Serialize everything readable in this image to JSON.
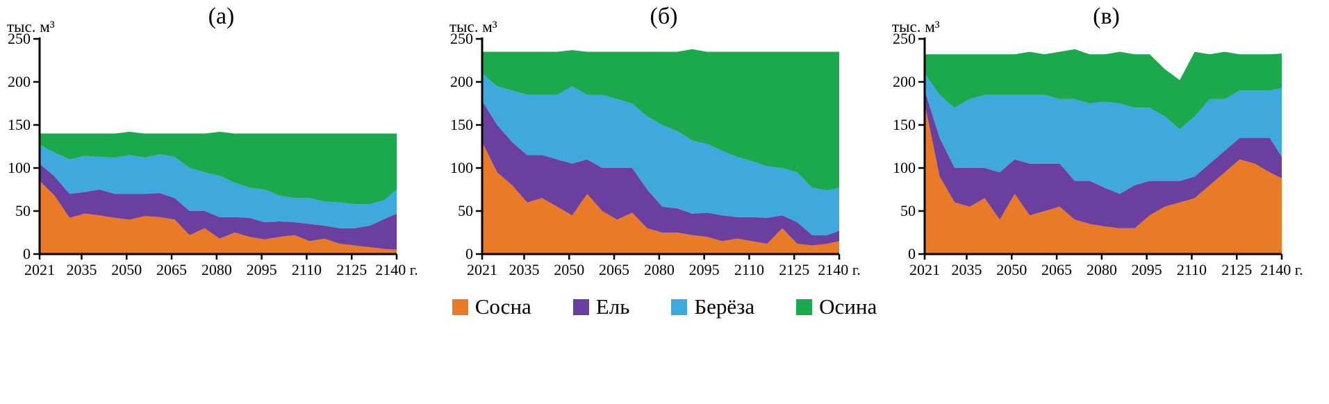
{
  "legend": {
    "items": [
      {
        "label": "Сосна",
        "color": "#E87A28"
      },
      {
        "label": "Ель",
        "color": "#6B3FA0"
      },
      {
        "label": "Берёза",
        "color": "#3FA8DC"
      },
      {
        "label": "Осина",
        "color": "#1CA84C"
      }
    ]
  },
  "chart_data": [
    {
      "type": "area",
      "title": "(а)",
      "ylabel": "тыс. м³",
      "ylim": [
        0,
        250
      ],
      "yticks": [
        0,
        50,
        100,
        150,
        200,
        250
      ],
      "xticks": [
        2021,
        2035,
        2050,
        2065,
        2080,
        2095,
        2110,
        2125,
        2140
      ],
      "xtick_labels": [
        "2021",
        "2035",
        "2050",
        "2065",
        "2080",
        "2095",
        "2110",
        "2125",
        "2140 г."
      ],
      "x": [
        2021,
        2026,
        2031,
        2036,
        2041,
        2046,
        2051,
        2056,
        2061,
        2066,
        2071,
        2076,
        2081,
        2086,
        2091,
        2096,
        2101,
        2106,
        2111,
        2116,
        2121,
        2126,
        2131,
        2136,
        2140
      ],
      "series": [
        {
          "name": "Сосна",
          "color": "#E87A28",
          "values": [
            85,
            68,
            42,
            47,
            45,
            42,
            40,
            44,
            43,
            40,
            22,
            30,
            18,
            25,
            20,
            17,
            20,
            22,
            15,
            18,
            12,
            10,
            8,
            6,
            5
          ]
        },
        {
          "name": "Ель",
          "color": "#6B3FA0",
          "values": [
            20,
            22,
            28,
            25,
            30,
            28,
            30,
            26,
            28,
            25,
            28,
            20,
            25,
            18,
            22,
            20,
            18,
            15,
            20,
            15,
            18,
            20,
            25,
            35,
            42
          ]
        },
        {
          "name": "Берёза",
          "color": "#3FA8DC",
          "values": [
            22,
            28,
            40,
            42,
            38,
            42,
            45,
            42,
            45,
            48,
            50,
            45,
            48,
            40,
            35,
            38,
            30,
            28,
            30,
            28,
            30,
            28,
            25,
            22,
            28
          ]
        },
        {
          "name": "Осина",
          "color": "#1CA84C",
          "values": [
            13,
            22,
            30,
            26,
            27,
            28,
            27,
            28,
            24,
            27,
            40,
            45,
            51,
            57,
            63,
            65,
            72,
            75,
            75,
            79,
            80,
            82,
            82,
            77,
            65
          ]
        }
      ]
    },
    {
      "type": "area",
      "title": "(б)",
      "ylabel": "тыс. м³",
      "ylim": [
        0,
        250
      ],
      "yticks": [
        0,
        50,
        100,
        150,
        200,
        250
      ],
      "xticks": [
        2021,
        2035,
        2050,
        2065,
        2080,
        2095,
        2110,
        2125,
        2140
      ],
      "xtick_labels": [
        "2021",
        "2035",
        "2050",
        "2065",
        "2080",
        "2095",
        "2110",
        "2125",
        "2140 г."
      ],
      "x": [
        2021,
        2026,
        2031,
        2036,
        2041,
        2046,
        2051,
        2056,
        2061,
        2066,
        2071,
        2076,
        2081,
        2086,
        2091,
        2096,
        2101,
        2106,
        2111,
        2116,
        2121,
        2126,
        2131,
        2136,
        2140
      ],
      "series": [
        {
          "name": "Сосна",
          "color": "#E87A28",
          "values": [
            130,
            95,
            80,
            60,
            65,
            55,
            45,
            70,
            50,
            40,
            48,
            30,
            25,
            25,
            22,
            20,
            15,
            18,
            15,
            12,
            30,
            12,
            10,
            12,
            15
          ]
        },
        {
          "name": "Ель",
          "color": "#6B3FA0",
          "values": [
            48,
            55,
            50,
            55,
            50,
            55,
            60,
            40,
            50,
            60,
            52,
            45,
            30,
            28,
            25,
            28,
            30,
            25,
            28,
            30,
            15,
            25,
            12,
            10,
            12
          ]
        },
        {
          "name": "Берёза",
          "color": "#3FA8DC",
          "values": [
            32,
            45,
            60,
            70,
            70,
            75,
            90,
            75,
            85,
            80,
            75,
            85,
            95,
            90,
            85,
            80,
            75,
            70,
            65,
            60,
            55,
            58,
            55,
            52,
            50
          ]
        },
        {
          "name": "Осина",
          "color": "#1CA84C",
          "values": [
            25,
            40,
            45,
            50,
            50,
            50,
            42,
            50,
            50,
            55,
            60,
            75,
            85,
            92,
            106,
            107,
            115,
            122,
            127,
            133,
            135,
            140,
            158,
            161,
            158
          ]
        }
      ]
    },
    {
      "type": "area",
      "title": "(в)",
      "ylabel": "тыс. м³",
      "ylim": [
        0,
        250
      ],
      "yticks": [
        0,
        50,
        100,
        150,
        200,
        250
      ],
      "xticks": [
        2021,
        2035,
        2050,
        2065,
        2080,
        2095,
        2110,
        2125,
        2140
      ],
      "xtick_labels": [
        "2021",
        "2035",
        "2050",
        "2065",
        "2080",
        "2095",
        "2110",
        "2125",
        "2140 г."
      ],
      "x": [
        2021,
        2026,
        2031,
        2036,
        2041,
        2046,
        2051,
        2056,
        2061,
        2066,
        2071,
        2076,
        2081,
        2086,
        2091,
        2096,
        2101,
        2106,
        2111,
        2116,
        2121,
        2126,
        2131,
        2136,
        2140
      ],
      "series": [
        {
          "name": "Сосна",
          "color": "#E87A28",
          "values": [
            175,
            90,
            60,
            55,
            65,
            40,
            70,
            45,
            50,
            55,
            40,
            35,
            32,
            30,
            30,
            45,
            55,
            60,
            65,
            80,
            95,
            110,
            105,
            95,
            88
          ]
        },
        {
          "name": "Ель",
          "color": "#6B3FA0",
          "values": [
            15,
            45,
            40,
            45,
            35,
            55,
            40,
            60,
            55,
            50,
            45,
            50,
            45,
            40,
            50,
            40,
            30,
            25,
            25,
            25,
            25,
            25,
            30,
            40,
            25
          ]
        },
        {
          "name": "Берёза",
          "color": "#3FA8DC",
          "values": [
            20,
            50,
            70,
            80,
            85,
            90,
            75,
            80,
            80,
            75,
            95,
            90,
            100,
            105,
            90,
            85,
            75,
            60,
            70,
            75,
            60,
            55,
            55,
            55,
            80
          ]
        },
        {
          "name": "Осина",
          "color": "#1CA84C",
          "values": [
            22,
            47,
            62,
            52,
            47,
            47,
            47,
            50,
            47,
            55,
            58,
            57,
            55,
            60,
            62,
            62,
            55,
            57,
            75,
            52,
            55,
            42,
            42,
            42,
            40
          ]
        }
      ]
    }
  ]
}
